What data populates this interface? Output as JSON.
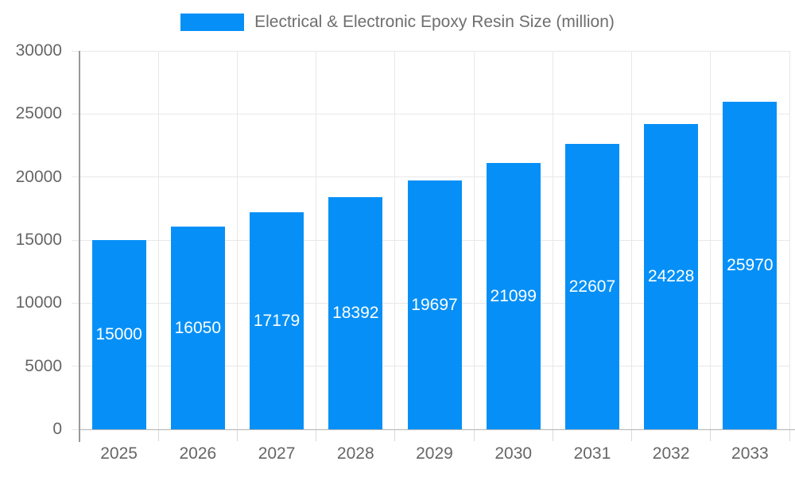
{
  "legend": {
    "label": "Electrical & Electronic Epoxy Resin Size (million)"
  },
  "colors": {
    "bar": "#0690f7",
    "grid": "#e8e8e8",
    "x_axis_line": "#b3b3b3",
    "y_axis_line": "#999999",
    "x_tick_mark": "#d9d9d9",
    "y_tick_mark": "#e8e8e8",
    "tick_text": "#666666",
    "title_text": "#6e6e6e",
    "bar_label_text": "#ffffff"
  },
  "chart_data": {
    "type": "bar",
    "title": "Electrical & Electronic Epoxy Resin Size (million)",
    "categories": [
      "2025",
      "2026",
      "2027",
      "2028",
      "2029",
      "2030",
      "2031",
      "2032",
      "2033"
    ],
    "values": [
      15000,
      16050,
      17179,
      18392,
      19697,
      21099,
      22607,
      24228,
      25970
    ],
    "xlabel": "",
    "ylabel": "",
    "ylim": [
      0,
      30000
    ],
    "ytick_step": 5000,
    "ytick_labels": [
      "0",
      "5000",
      "10000",
      "15000",
      "20000",
      "25000",
      "30000"
    ],
    "grid": true,
    "legend_position": "top",
    "bar_labels": [
      "15000",
      "16050",
      "17179",
      "18392",
      "19697",
      "21099",
      "22607",
      "24228",
      "25970"
    ],
    "bar_label_position": "inside-center"
  }
}
